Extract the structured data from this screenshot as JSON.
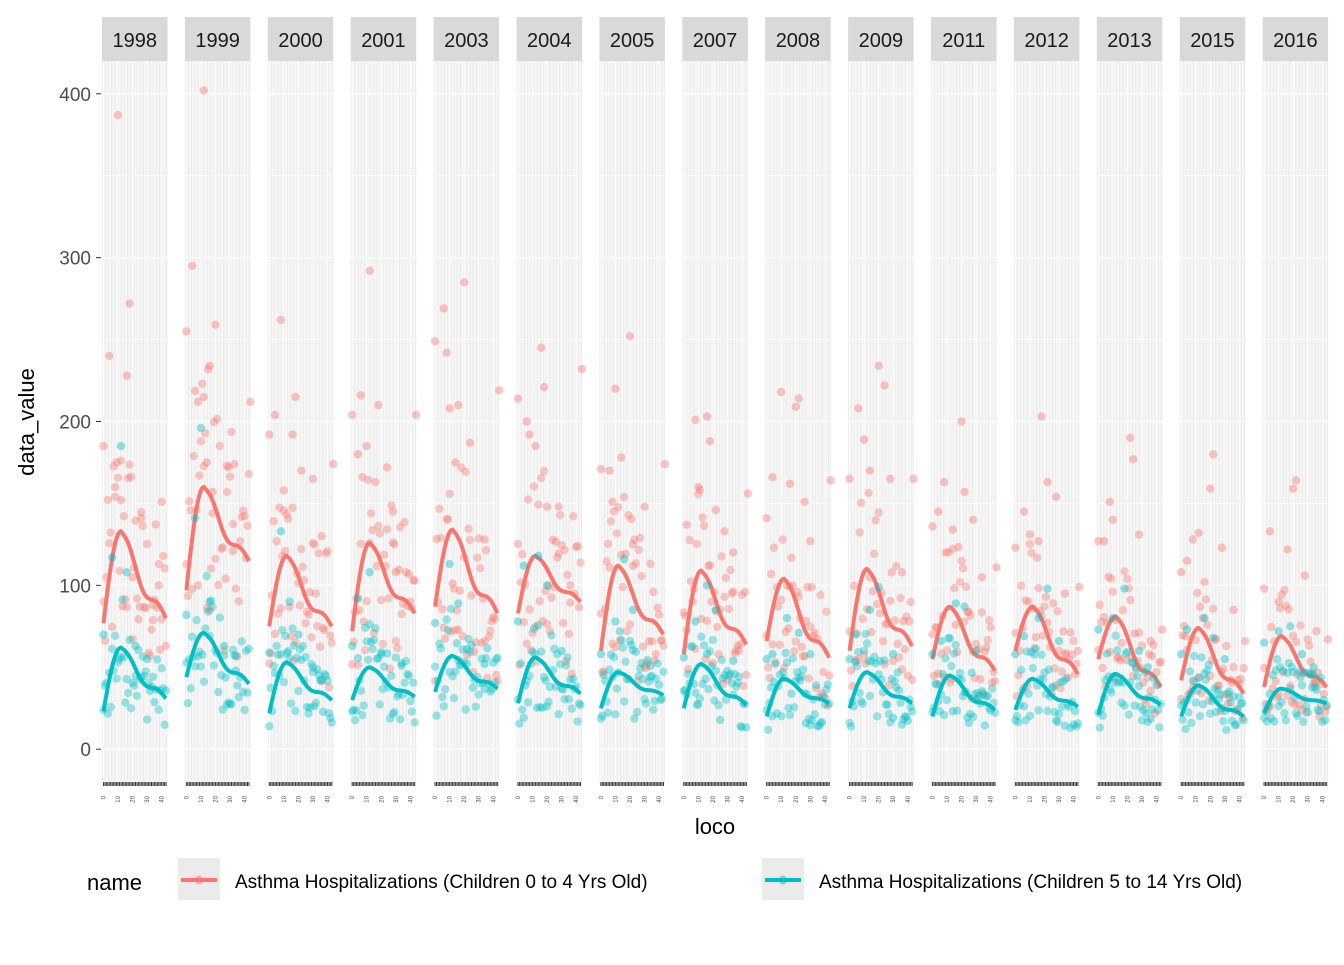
{
  "chart_data": {
    "type": "scatter",
    "facet_labels": [
      "1998",
      "1999",
      "2000",
      "2001",
      "2003",
      "2004",
      "2005",
      "2007",
      "2008",
      "2009",
      "2011",
      "2012",
      "2013",
      "2015",
      "2016"
    ],
    "xlabel": "loco",
    "ylabel": "data_value",
    "xlim": [
      -1,
      44
    ],
    "ylim": [
      -20,
      420
    ],
    "y_ticks": [
      0,
      100,
      200,
      300,
      400
    ],
    "x_ticks": [
      0,
      10,
      20,
      30,
      40
    ],
    "grid": true,
    "legend": {
      "title": "name",
      "position": "bottom",
      "entries": [
        {
          "label": "Asthma Hospitalizations (Children 0 to 4 Yrs Old)",
          "color": "#F8766D"
        },
        {
          "label": "Asthma Hospitalizations (Children 5 to 14 Yrs Old)",
          "color": "#00BFC4"
        }
      ]
    },
    "series": [
      {
        "name": "Asthma Hospitalizations (Children 0 to 4 Yrs Old)",
        "color": "#F8766D",
        "smooth_peak": [
          133,
          160,
          118,
          126,
          134,
          118,
          112,
          109,
          104,
          110,
          87,
          87,
          81,
          74,
          69
        ],
        "smooth_tail": [
          80,
          115,
          75,
          83,
          83,
          90,
          70,
          64,
          56,
          63,
          48,
          46,
          38,
          34,
          38
        ],
        "smooth_start": [
          77,
          97,
          75,
          72,
          87,
          83,
          60,
          58,
          66,
          60,
          55,
          60,
          55,
          42,
          38
        ],
        "high_points": [
          [
            [
              0,
              185
            ],
            [
              4,
              240
            ],
            [
              10,
              387
            ],
            [
              18,
              272
            ],
            [
              16,
              228
            ],
            [
              12,
              152
            ],
            [
              8,
              160
            ],
            [
              26,
              141
            ],
            [
              38,
              100
            ],
            [
              40,
              151
            ],
            [
              34,
              88
            ],
            [
              20,
              105
            ]
          ],
          [
            [
              0,
              255
            ],
            [
              4,
              295
            ],
            [
              12,
              402
            ],
            [
              20,
              259
            ],
            [
              16,
              234
            ],
            [
              8,
              212
            ],
            [
              12,
              215
            ],
            [
              28,
              173
            ],
            [
              44,
              212
            ],
            [
              18,
              157
            ],
            [
              14,
              175
            ],
            [
              32,
              121
            ]
          ],
          [
            [
              0,
              192
            ],
            [
              4,
              204
            ],
            [
              8,
              262
            ],
            [
              18,
              215
            ],
            [
              16,
              192
            ],
            [
              22,
              170
            ],
            [
              30,
              165
            ],
            [
              44,
              174
            ],
            [
              10,
              158
            ],
            [
              36,
              130
            ]
          ],
          [
            [
              0,
              204
            ],
            [
              6,
              216
            ],
            [
              12,
              292
            ],
            [
              18,
              210
            ],
            [
              10,
              185
            ],
            [
              24,
              172
            ],
            [
              28,
              145
            ],
            [
              44,
              204
            ],
            [
              4,
              180
            ],
            [
              30,
              108
            ]
          ],
          [
            [
              0,
              249
            ],
            [
              6,
              269
            ],
            [
              8,
              242
            ],
            [
              20,
              285
            ],
            [
              16,
              210
            ],
            [
              10,
              208
            ],
            [
              24,
              187
            ],
            [
              34,
              128
            ],
            [
              44,
              219
            ],
            [
              14,
              175
            ]
          ],
          [
            [
              0,
              214
            ],
            [
              6,
              200
            ],
            [
              16,
              245
            ],
            [
              18,
              221
            ],
            [
              8,
              192
            ],
            [
              20,
              148
            ],
            [
              28,
              148
            ],
            [
              44,
              232
            ],
            [
              12,
              185
            ],
            [
              36,
              100
            ]
          ],
          [
            [
              0,
              171
            ],
            [
              6,
              170
            ],
            [
              10,
              220
            ],
            [
              20,
              252
            ],
            [
              14,
              178
            ],
            [
              8,
              151
            ],
            [
              30,
              148
            ],
            [
              44,
              174
            ],
            [
              22,
              125
            ]
          ],
          [
            [
              8,
              201
            ],
            [
              16,
              203
            ],
            [
              18,
              188
            ],
            [
              10,
              160
            ],
            [
              22,
              146
            ],
            [
              28,
              133
            ],
            [
              44,
              156
            ],
            [
              2,
              137
            ],
            [
              34,
              120
            ]
          ],
          [
            [
              0,
              141
            ],
            [
              10,
              218
            ],
            [
              22,
              214
            ],
            [
              20,
              209
            ],
            [
              4,
              166
            ],
            [
              16,
              162
            ],
            [
              26,
              151
            ],
            [
              44,
              164
            ],
            [
              30,
              127
            ]
          ],
          [
            [
              0,
              165
            ],
            [
              6,
              208
            ],
            [
              20,
              234
            ],
            [
              24,
              222
            ],
            [
              10,
              189
            ],
            [
              14,
              170
            ],
            [
              28,
              165
            ],
            [
              44,
              165
            ],
            [
              36,
              108
            ]
          ],
          [
            [
              0,
              136
            ],
            [
              8,
              163
            ],
            [
              20,
              200
            ],
            [
              14,
              134
            ],
            [
              22,
              157
            ],
            [
              28,
              140
            ],
            [
              44,
              111
            ],
            [
              4,
              145
            ],
            [
              34,
              105
            ]
          ],
          [
            [
              0,
              123
            ],
            [
              6,
              145
            ],
            [
              18,
              203
            ],
            [
              22,
              163
            ],
            [
              10,
              131
            ],
            [
              16,
              127
            ],
            [
              28,
              154
            ],
            [
              44,
              99
            ],
            [
              34,
              95
            ]
          ],
          [
            [
              0,
              127
            ],
            [
              8,
              151
            ],
            [
              22,
              190
            ],
            [
              24,
              177
            ],
            [
              10,
              140
            ],
            [
              28,
              131
            ],
            [
              44,
              73
            ],
            [
              4,
              127
            ],
            [
              36,
              66
            ]
          ],
          [
            [
              0,
              108
            ],
            [
              8,
              128
            ],
            [
              22,
              180
            ],
            [
              20,
              159
            ],
            [
              12,
              132
            ],
            [
              28,
              123
            ],
            [
              44,
              66
            ],
            [
              4,
              115
            ],
            [
              36,
              85
            ]
          ],
          [
            [
              0,
              98
            ],
            [
              4,
              133
            ],
            [
              16,
              122
            ],
            [
              22,
              164
            ],
            [
              20,
              159
            ],
            [
              28,
              106
            ],
            [
              44,
              67
            ],
            [
              10,
              90
            ],
            [
              36,
              72
            ]
          ]
        ]
      },
      {
        "name": "Asthma Hospitalizations (Children 5 to 14 Yrs Old)",
        "color": "#00BFC4",
        "smooth_peak": [
          62,
          71,
          53,
          50,
          57,
          56,
          47,
          52,
          43,
          47,
          45,
          43,
          46,
          39,
          37
        ],
        "smooth_tail": [
          31,
          40,
          30,
          32,
          37,
          34,
          33,
          27,
          28,
          28,
          24,
          26,
          27,
          20,
          28
        ],
        "smooth_start": [
          23,
          44,
          22,
          30,
          35,
          28,
          25,
          25,
          20,
          25,
          20,
          24,
          21,
          20,
          22
        ],
        "high_points": [
          [
            [
              12,
              185
            ],
            [
              6,
              117
            ],
            [
              16,
              108
            ],
            [
              0,
              70
            ],
            [
              22,
              63
            ],
            [
              30,
              55
            ]
          ],
          [
            [
              10,
              196
            ],
            [
              6,
              141
            ],
            [
              16,
              90
            ],
            [
              0,
              82
            ],
            [
              26,
              63
            ],
            [
              34,
              48
            ]
          ],
          [
            [
              8,
              133
            ],
            [
              14,
              90
            ],
            [
              0,
              59
            ],
            [
              20,
              70
            ],
            [
              30,
              50
            ]
          ],
          [
            [
              12,
              108
            ],
            [
              4,
              92
            ],
            [
              0,
              63
            ],
            [
              20,
              58
            ],
            [
              34,
              51
            ]
          ],
          [
            [
              10,
              113
            ],
            [
              16,
              89
            ],
            [
              0,
              77
            ],
            [
              22,
              61
            ],
            [
              34,
              52
            ]
          ],
          [
            [
              14,
              118
            ],
            [
              4,
              112
            ],
            [
              20,
              100
            ],
            [
              0,
              78
            ],
            [
              30,
              60
            ]
          ],
          [
            [
              16,
              116
            ],
            [
              22,
              85
            ],
            [
              10,
              78
            ],
            [
              0,
              58
            ],
            [
              34,
              51
            ]
          ],
          [
            [
              16,
              100
            ],
            [
              22,
              85
            ],
            [
              8,
              78
            ],
            [
              0,
              56
            ],
            [
              34,
              54
            ]
          ],
          [
            [
              14,
              80
            ],
            [
              22,
              71
            ],
            [
              4,
              58
            ],
            [
              30,
              58
            ],
            [
              0,
              55
            ]
          ],
          [
            [
              20,
              99
            ],
            [
              14,
              85
            ],
            [
              4,
              70
            ],
            [
              30,
              58
            ],
            [
              0,
              55
            ]
          ],
          [
            [
              16,
              89
            ],
            [
              22,
              87
            ],
            [
              6,
              66
            ],
            [
              30,
              60
            ],
            [
              0,
              58
            ]
          ],
          [
            [
              22,
              98
            ],
            [
              16,
              80
            ],
            [
              6,
              69
            ],
            [
              30,
              66
            ],
            [
              0,
              58
            ]
          ],
          [
            [
              18,
              98
            ],
            [
              10,
              80
            ],
            [
              0,
              73
            ],
            [
              28,
              60
            ],
            [
              34,
              50
            ]
          ],
          [
            [
              16,
              80
            ],
            [
              22,
              68
            ],
            [
              4,
              73
            ],
            [
              0,
              58
            ],
            [
              30,
              55
            ]
          ],
          [
            [
              18,
              75
            ],
            [
              10,
              72
            ],
            [
              0,
              65
            ],
            [
              26,
              58
            ],
            [
              34,
              50
            ]
          ]
        ]
      }
    ]
  }
}
